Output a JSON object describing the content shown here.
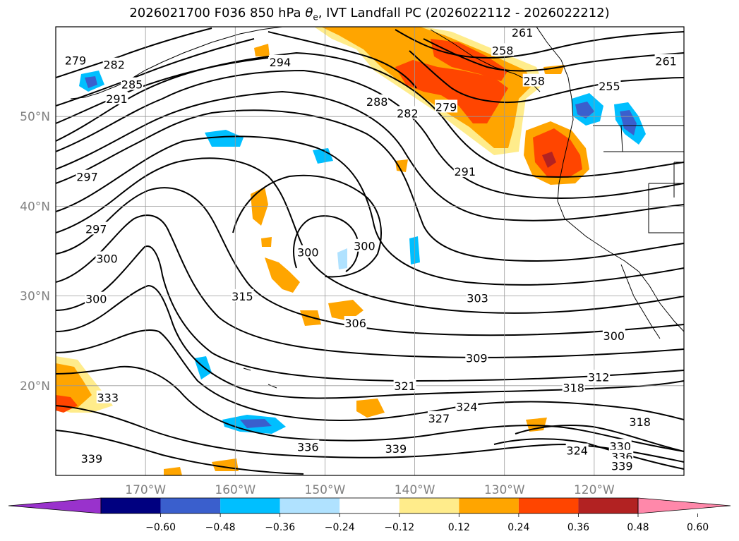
{
  "title_prefix": "2026021700 F036 850 hPa ",
  "title_symbol": "θ",
  "title_symbol_sub": "e",
  "title_suffix": ", IVT Landfall PC (2026022112 - 2026022212)",
  "map": {
    "lon_range": [
      -180,
      -110
    ],
    "lat_range": [
      10,
      60
    ],
    "meridians": [
      -170,
      -160,
      -150,
      -140,
      -130,
      -120
    ],
    "parallels": [
      20,
      30,
      40,
      50
    ],
    "lon_labels": [
      "170°W",
      "160°W",
      "150°W",
      "140°W",
      "130°W",
      "120°W"
    ],
    "lat_labels": [
      "20°N",
      "30°N",
      "40°N",
      "50°N"
    ],
    "grid": true
  },
  "colorbar": {
    "ticks": [
      "−0.60",
      "−0.48",
      "−0.36",
      "−0.24",
      "−0.12",
      "0.12",
      "0.24",
      "0.36",
      "0.48",
      "0.60"
    ],
    "colors": [
      "#9932cc",
      "#000080",
      "#3a5fcd",
      "#00bfff",
      "#b0e2ff",
      "#ffffff",
      "#ffec8b",
      "#ffa500",
      "#ff4500",
      "#b22222",
      "#ff88aa"
    ],
    "extend": "both"
  },
  "contour_labels": [
    {
      "text": "279",
      "lon": -177.8,
      "lat": 56.2
    },
    {
      "text": "282",
      "lon": -173.5,
      "lat": 55.7
    },
    {
      "text": "285",
      "lon": -171.5,
      "lat": 53.5
    },
    {
      "text": "291",
      "lon": -173.2,
      "lat": 51.9
    },
    {
      "text": "294",
      "lon": -155.0,
      "lat": 56.0
    },
    {
      "text": "261",
      "lon": -128.0,
      "lat": 59.3
    },
    {
      "text": "258",
      "lon": -130.2,
      "lat": 57.3
    },
    {
      "text": "261",
      "lon": -112.0,
      "lat": 56.1
    },
    {
      "text": "258",
      "lon": -126.7,
      "lat": 53.9
    },
    {
      "text": "255",
      "lon": -118.3,
      "lat": 53.3
    },
    {
      "text": "288",
      "lon": -144.2,
      "lat": 51.6
    },
    {
      "text": "282",
      "lon": -140.8,
      "lat": 50.3
    },
    {
      "text": "279",
      "lon": -136.5,
      "lat": 51.0
    },
    {
      "text": "291",
      "lon": -134.4,
      "lat": 43.8
    },
    {
      "text": "297",
      "lon": -176.5,
      "lat": 43.2
    },
    {
      "text": "297",
      "lon": -175.5,
      "lat": 37.4
    },
    {
      "text": "300",
      "lon": -174.3,
      "lat": 34.1
    },
    {
      "text": "300",
      "lon": -151.9,
      "lat": 34.8
    },
    {
      "text": "300",
      "lon": -145.6,
      "lat": 35.5
    },
    {
      "text": "315",
      "lon": -159.2,
      "lat": 29.9
    },
    {
      "text": "300",
      "lon": -175.5,
      "lat": 29.6
    },
    {
      "text": "303",
      "lon": -133.0,
      "lat": 29.7
    },
    {
      "text": "306",
      "lon": -146.6,
      "lat": 26.9
    },
    {
      "text": "309",
      "lon": -133.1,
      "lat": 23.0
    },
    {
      "text": "300",
      "lon": -117.8,
      "lat": 25.5
    },
    {
      "text": "312",
      "lon": -119.5,
      "lat": 20.9
    },
    {
      "text": "318",
      "lon": -122.3,
      "lat": 19.7
    },
    {
      "text": "321",
      "lon": -141.1,
      "lat": 19.9
    },
    {
      "text": "324",
      "lon": -134.2,
      "lat": 17.6
    },
    {
      "text": "327",
      "lon": -137.3,
      "lat": 16.3
    },
    {
      "text": "333",
      "lon": -174.2,
      "lat": 18.6
    },
    {
      "text": "318",
      "lon": -114.9,
      "lat": 15.9
    },
    {
      "text": "336",
      "lon": -151.9,
      "lat": 13.1
    },
    {
      "text": "339",
      "lon": -142.1,
      "lat": 12.9
    },
    {
      "text": "324",
      "lon": -121.9,
      "lat": 12.7
    },
    {
      "text": "330",
      "lon": -117.1,
      "lat": 13.2
    },
    {
      "text": "336",
      "lon": -116.9,
      "lat": 12.0
    },
    {
      "text": "339",
      "lon": -116.9,
      "lat": 11.0
    },
    {
      "text": "339",
      "lon": -176.0,
      "lat": 11.8
    }
  ]
}
